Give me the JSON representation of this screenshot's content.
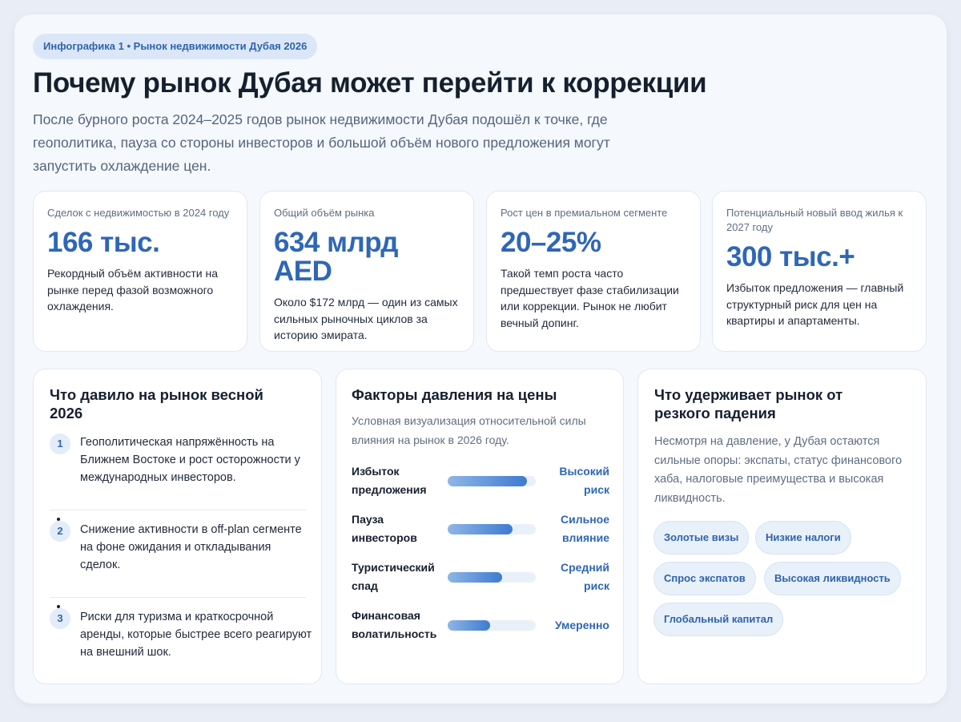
{
  "badge": "Инфографика 1 • Рынок недвижимости Дубая 2026",
  "title": "Почему рынок Дубая может перейти к коррекции",
  "subtitle": "После бурного роста 2024–2025 годов рынок недвижимости Дубая подошёл к точке, где геополитика, пауза со стороны инвесторов и большой объём нового предложения могут запустить охлаждение цен.",
  "stats": [
    {
      "label": "Сделок с недвижимостью в 2024 году",
      "value": "166 тыс.",
      "desc": "Рекордный объём активности на рынке перед фазой возможного охлаждения."
    },
    {
      "label": "Общий объём рынка",
      "value": "634 млрд AED",
      "desc": "Около $172 млрд — один из самых сильных рыночных циклов за историю эмирата."
    },
    {
      "label": "Рост цен в премиальном сегменте",
      "value": "20–25%",
      "desc": "Такой темп роста часто предшествует фазе стабилизации или коррекции. Рынок не любит вечный допинг."
    },
    {
      "label": "Потенциальный новый ввод жилья к 2027 году",
      "value": "300 тыс.+",
      "desc": "Избыток предложения — главный структурный риск для цен на квартиры и апартаменты."
    }
  ],
  "pressure": {
    "title": "Что давило на рынок весной 2026",
    "items": [
      {
        "num": "1",
        "text": "Геополитическая напряжённость на Ближнем Востоке и рост осторожности у международных инвесторов."
      },
      {
        "num": "2",
        "text": "Снижение активности в off-plan сегменте на фоне ожидания и откладывания сделок."
      },
      {
        "num": "3",
        "text": "Риски для туризма и краткосрочной аренды, которые быстрее всего реагируют на внешний шок."
      }
    ]
  },
  "factors": {
    "title": "Факторы давления на цены",
    "desc": "Условная визуализация относительной силы влияния на рынок в 2026 году.",
    "rows": [
      {
        "name": "Избыток предложения",
        "level": "Высокий риск",
        "strength": 0.9
      },
      {
        "name": "Пауза инвесторов",
        "level": "Сильное влияние",
        "strength": 0.74
      },
      {
        "name": "Туристический спад",
        "level": "Средний риск",
        "strength": 0.62
      },
      {
        "name": "Финансовая волатильность",
        "level": "Умеренно",
        "strength": 0.48
      }
    ]
  },
  "support": {
    "title": "Что удерживает рынок от резкого падения",
    "desc": "Несмотря на давление, у Дубая остаются сильные опоры: экспаты, статус финансового хаба, налоговые преимущества и высокая ликвидность.",
    "chips": [
      "Золотые визы",
      "Низкие налоги",
      "Спрос экспатов",
      "Высокая ликвидность",
      "Глобальный капитал"
    ]
  }
}
